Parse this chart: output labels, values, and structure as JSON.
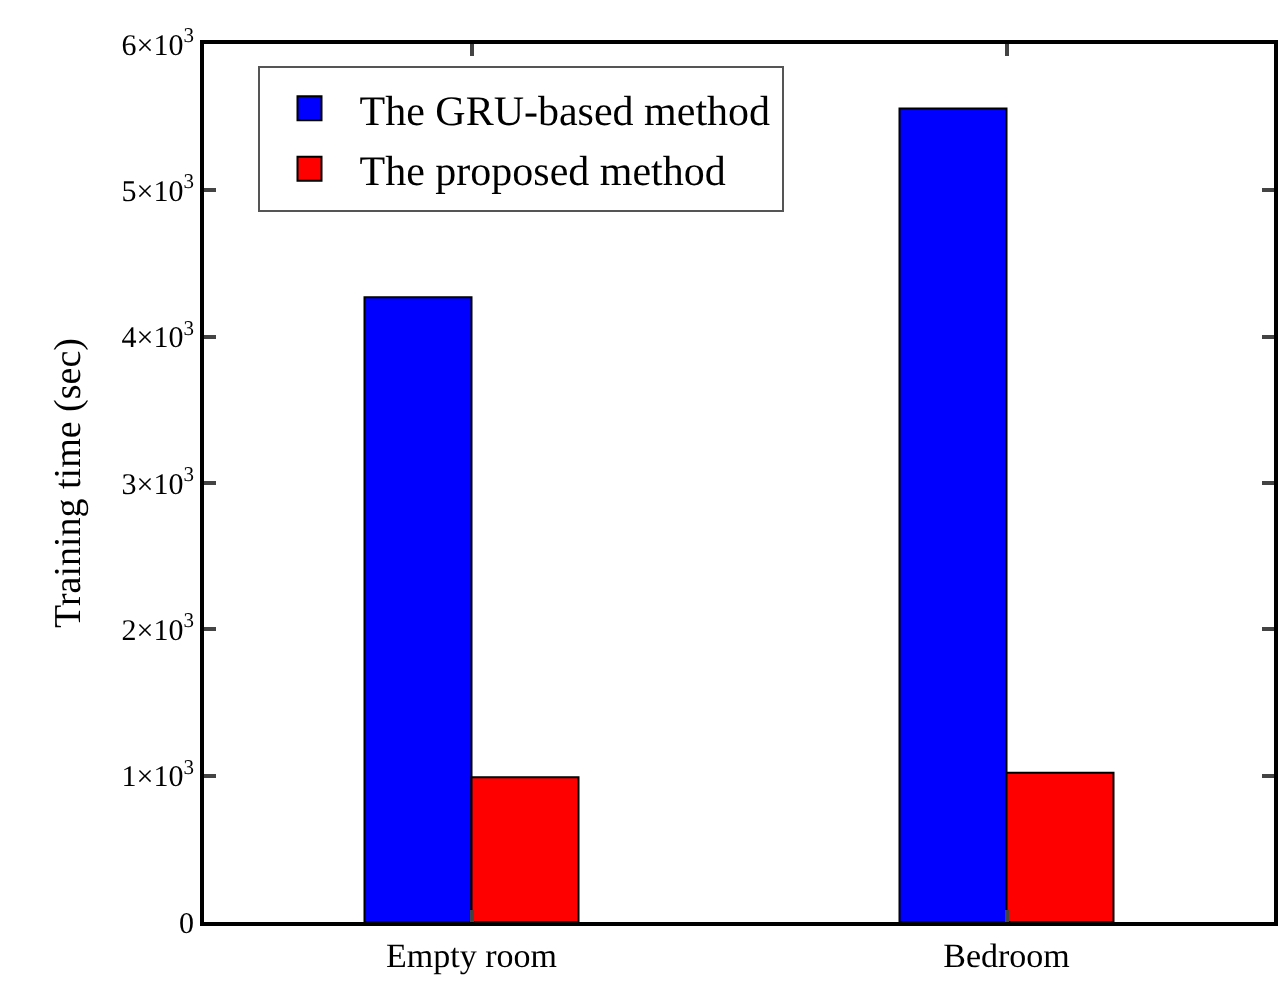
{
  "chart_data": {
    "type": "bar",
    "ylabel": "Training time (sec)",
    "categories": [
      "Empty room",
      "Bedroom"
    ],
    "series": [
      {
        "name": "The GRU-based method",
        "color": "#0000ff",
        "values": [
          4270,
          5560
        ]
      },
      {
        "name": "The proposed method",
        "color": "#ff0000",
        "values": [
          990,
          1020
        ]
      }
    ],
    "ylim": [
      0,
      6000
    ],
    "yticks": [
      0,
      {
        "value": 1000,
        "label": "1×10$^{3}$"
      },
      {
        "value": 2000,
        "label": "2×10$^{3}$"
      },
      {
        "value": 3000,
        "label": "3×10$^{3}$"
      },
      {
        "value": 4000,
        "label": "4×10$^{3}$"
      },
      {
        "value": 5000,
        "label": "5×10$^{3}$"
      },
      {
        "value": 6000,
        "label": "6×10$^{3}$"
      }
    ],
    "legend": "top left"
  }
}
